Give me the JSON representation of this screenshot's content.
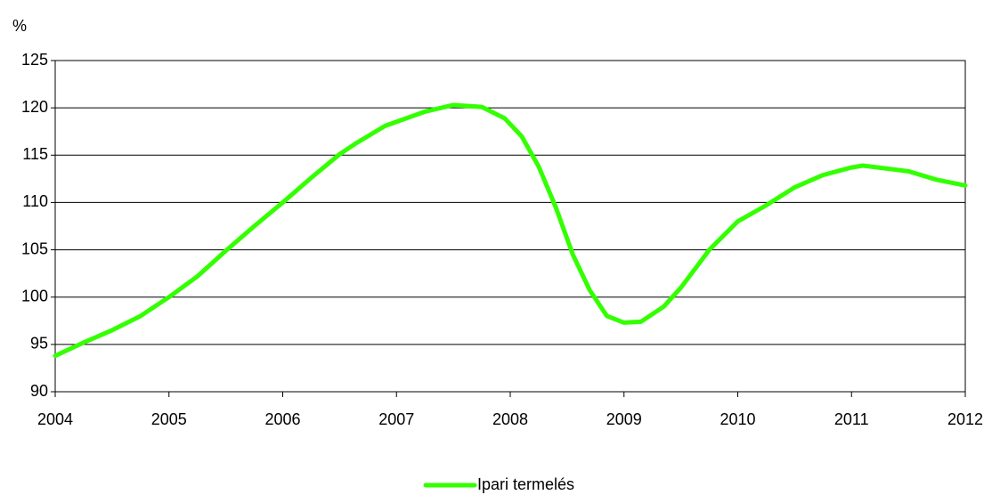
{
  "chart_data": {
    "type": "line",
    "y_label": "%",
    "xlim": [
      2004,
      2012
    ],
    "xticks": [
      2004,
      2005,
      2006,
      2007,
      2008,
      2009,
      2010,
      2011,
      2012
    ],
    "ylim": [
      90,
      125
    ],
    "yticks": [
      90,
      95,
      100,
      105,
      110,
      115,
      120,
      125
    ],
    "grid": true,
    "legend": "bottom",
    "x": [
      2004.0,
      2004.25,
      2004.5,
      2004.75,
      2005.0,
      2005.25,
      2005.5,
      2005.75,
      2006.0,
      2006.25,
      2006.5,
      2006.65,
      2006.9,
      2007.25,
      2007.5,
      2007.75,
      2007.95,
      2008.1,
      2008.25,
      2008.4,
      2008.55,
      2008.7,
      2008.85,
      2009.0,
      2009.15,
      2009.35,
      2009.5,
      2009.75,
      2010.0,
      2010.25,
      2010.5,
      2010.75,
      2011.0,
      2011.1,
      2011.5,
      2011.75,
      2012.0
    ],
    "series": [
      {
        "name": "Ipari termelés",
        "color": "#33ff00",
        "values": [
          93.8,
          95.2,
          96.5,
          98.0,
          100.0,
          102.2,
          104.9,
          107.5,
          110.0,
          112.6,
          115.1,
          116.3,
          118.1,
          119.6,
          120.3,
          120.1,
          118.9,
          117.0,
          113.8,
          109.5,
          104.5,
          100.7,
          98.0,
          97.3,
          97.4,
          99.0,
          101.0,
          105.0,
          108.0,
          109.7,
          111.6,
          112.9,
          113.7,
          113.9,
          113.3,
          112.4,
          111.8
        ]
      }
    ]
  }
}
